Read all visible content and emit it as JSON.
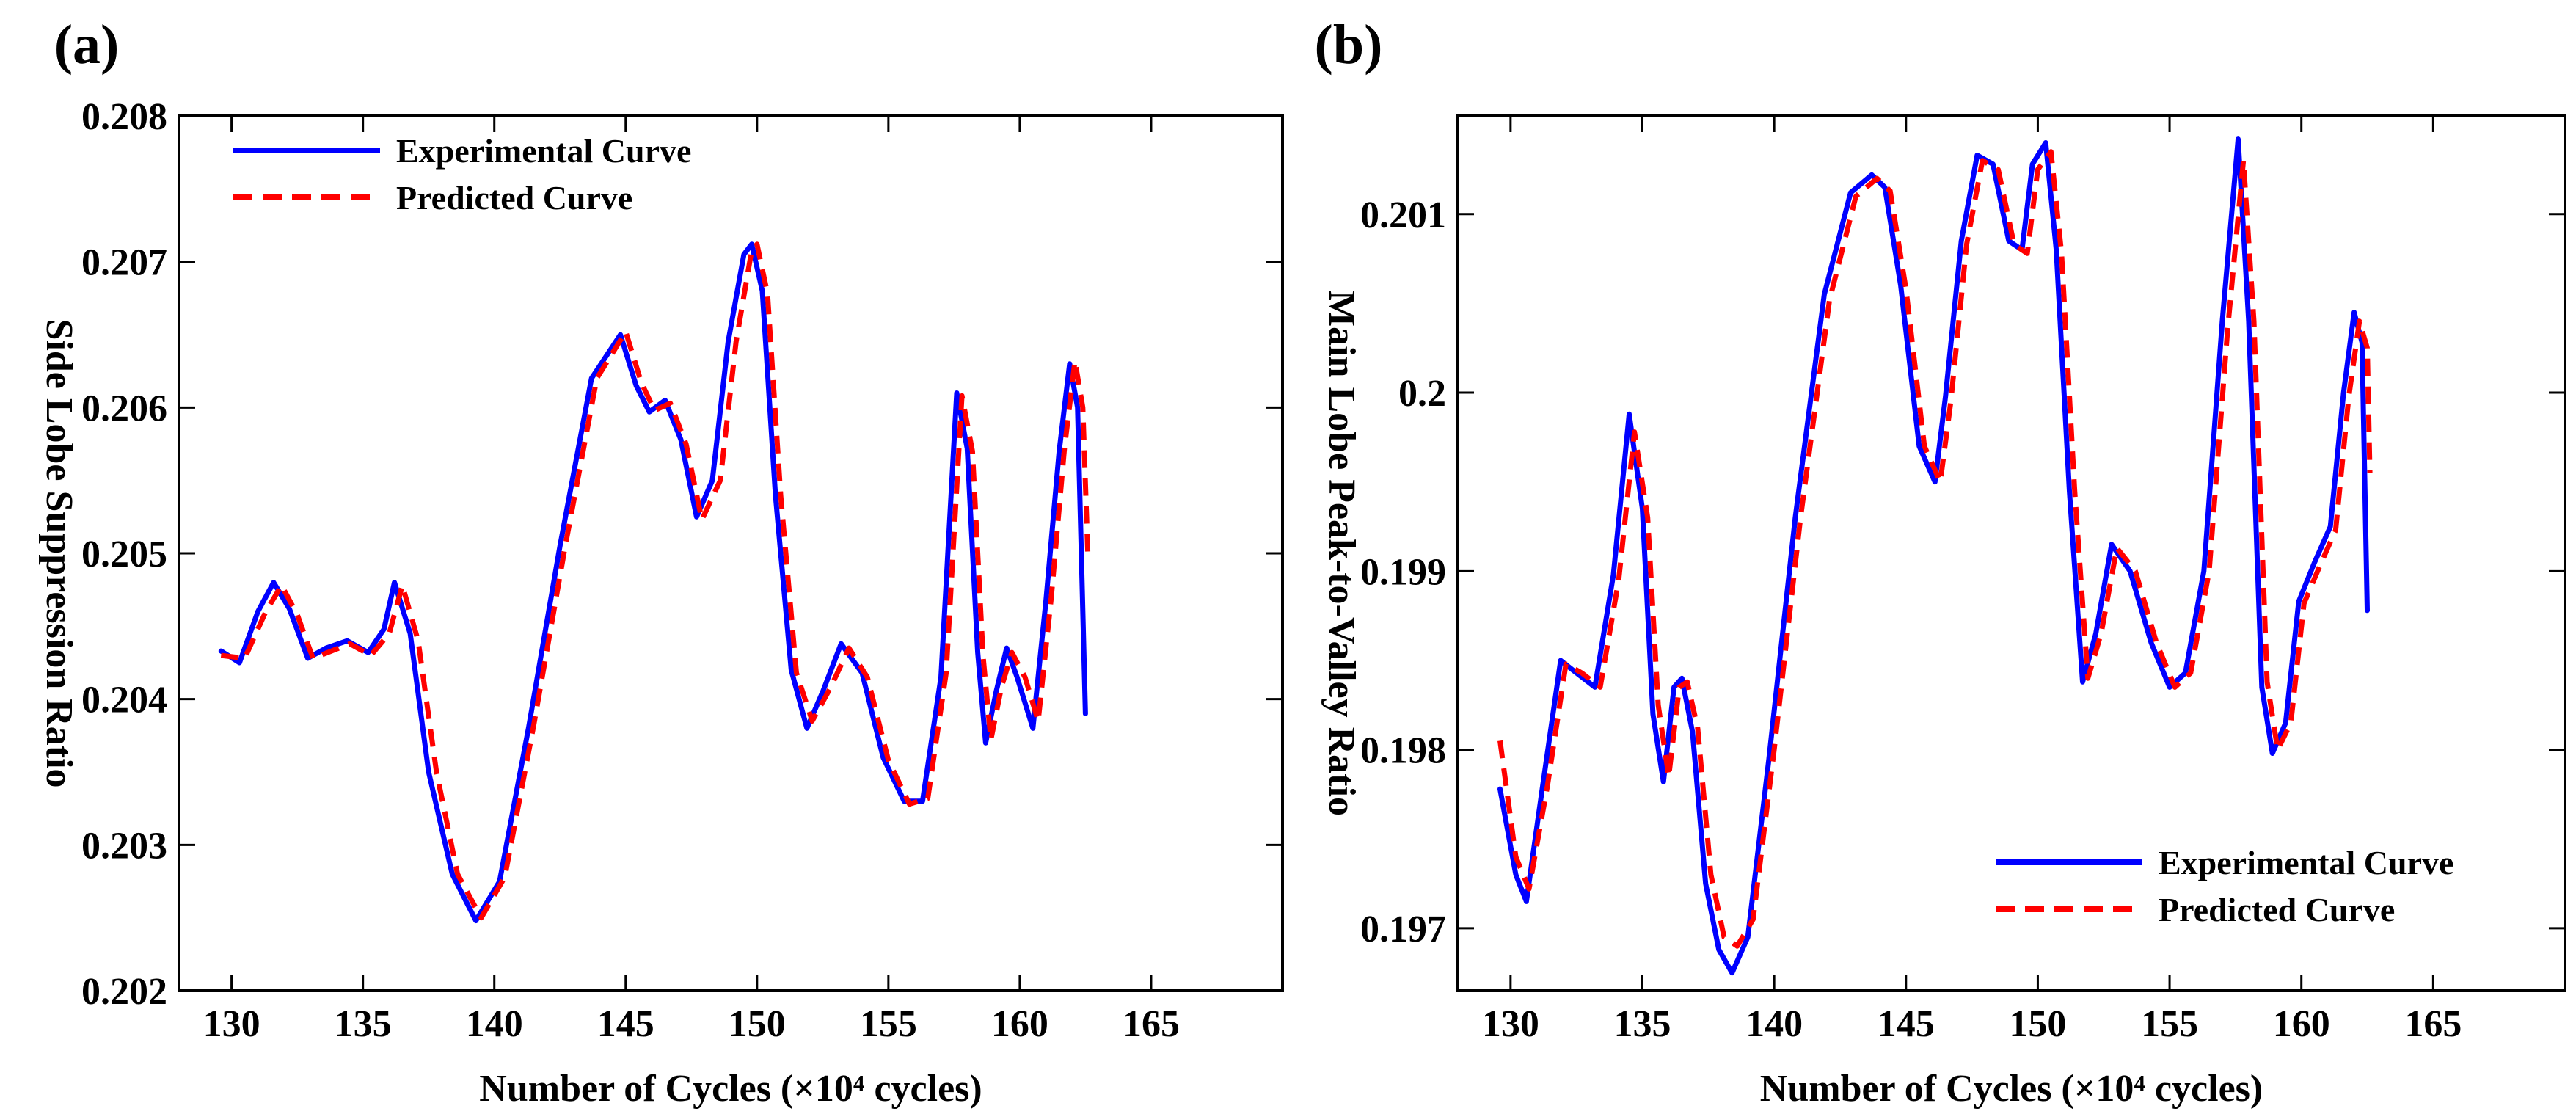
{
  "chart_data": [
    {
      "type": "line",
      "panel_label": "(a)",
      "xlabel": "Number of Cycles (×10⁴ cycles)",
      "ylabel": "Side Lobe Suppression Ratio",
      "xlim": [
        128,
        170
      ],
      "ylim": [
        0.202,
        0.208
      ],
      "xticks": [
        130,
        135,
        140,
        145,
        150,
        155,
        160,
        165
      ],
      "yticks": [
        0.202,
        0.203,
        0.204,
        0.205,
        0.206,
        0.207,
        0.208
      ],
      "ytick_labels": [
        "0.202",
        "0.203",
        "0.204",
        "0.205",
        "0.206",
        "0.207",
        "0.208"
      ],
      "legend_position": "top-left",
      "series": [
        {
          "name": "Experimental Curve",
          "color": "#0000ff",
          "style": "solid",
          "x": [
            129.6,
            130.3,
            131.0,
            131.6,
            132.2,
            132.9,
            133.6,
            134.4,
            135.2,
            135.8,
            136.2,
            136.8,
            137.5,
            138.4,
            139.3,
            140.2,
            141.3,
            142.5,
            143.7,
            144.8,
            145.4,
            145.9,
            146.5,
            147.1,
            147.7,
            148.3,
            148.9,
            149.5,
            149.8,
            150.2,
            150.7,
            151.3,
            151.9,
            152.5,
            153.2,
            154.0,
            154.8,
            155.6,
            156.3,
            157.0,
            157.6,
            158.0,
            158.4,
            158.7,
            159.1,
            159.5,
            159.9,
            160.5,
            161.0,
            161.5,
            161.9,
            162.2,
            162.5
          ],
          "y": [
            0.20433,
            0.20425,
            0.2046,
            0.2048,
            0.20462,
            0.20428,
            0.20435,
            0.2044,
            0.20432,
            0.20448,
            0.2048,
            0.20445,
            0.2035,
            0.2028,
            0.20248,
            0.20275,
            0.2038,
            0.20505,
            0.2062,
            0.2065,
            0.20615,
            0.20597,
            0.20605,
            0.20578,
            0.20525,
            0.2055,
            0.20645,
            0.20705,
            0.20712,
            0.2068,
            0.2054,
            0.2042,
            0.2038,
            0.20405,
            0.20438,
            0.20418,
            0.2036,
            0.2033,
            0.2033,
            0.20415,
            0.2061,
            0.20572,
            0.20432,
            0.2037,
            0.20405,
            0.20435,
            0.20415,
            0.2038,
            0.20468,
            0.2057,
            0.2063,
            0.206,
            0.2039
          ]
        },
        {
          "name": "Predicted Curve",
          "color": "#ff0000",
          "style": "dashed",
          "x": [
            129.6,
            130.5,
            131.3,
            131.9,
            132.5,
            133.1,
            133.8,
            134.5,
            135.3,
            136.0,
            136.5,
            137.1,
            137.8,
            138.6,
            139.5,
            140.4,
            141.5,
            142.7,
            143.9,
            145.0,
            145.6,
            146.1,
            146.7,
            147.3,
            147.9,
            148.6,
            149.2,
            149.8,
            150.0,
            150.4,
            150.9,
            151.5,
            152.1,
            152.8,
            153.5,
            154.2,
            155.0,
            155.8,
            156.5,
            157.2,
            157.8,
            158.2,
            158.6,
            158.9,
            159.3,
            159.7,
            160.2,
            160.7,
            161.2,
            161.7,
            162.1,
            162.4,
            162.6
          ],
          "y": [
            0.2043,
            0.20428,
            0.2046,
            0.20478,
            0.20458,
            0.20428,
            0.20433,
            0.20438,
            0.2043,
            0.20445,
            0.20478,
            0.2044,
            0.2035,
            0.2028,
            0.2025,
            0.20278,
            0.20382,
            0.20505,
            0.2062,
            0.20652,
            0.20617,
            0.20598,
            0.20603,
            0.20575,
            0.20523,
            0.2055,
            0.20645,
            0.20708,
            0.20712,
            0.20678,
            0.2054,
            0.20418,
            0.20385,
            0.20408,
            0.20435,
            0.20415,
            0.20358,
            0.20328,
            0.20332,
            0.20418,
            0.20608,
            0.2057,
            0.2043,
            0.20372,
            0.20408,
            0.20432,
            0.20415,
            0.20385,
            0.2047,
            0.20572,
            0.20632,
            0.206,
            0.20495
          ]
        }
      ]
    },
    {
      "type": "line",
      "panel_label": "(b)",
      "xlabel": "Number of Cycles (×10⁴ cycles)",
      "ylabel": "Main Lobe Peak-to-Valley Ratio",
      "xlim": [
        128,
        170
      ],
      "ylim": [
        0.19665,
        0.20155
      ],
      "xticks": [
        130,
        135,
        140,
        145,
        150,
        155,
        160,
        165
      ],
      "yticks": [
        0.197,
        0.198,
        0.199,
        0.2,
        0.201
      ],
      "ytick_labels": [
        "0.197",
        "0.198",
        "0.199",
        "0.2",
        "0.201"
      ],
      "legend_position": "bottom-right",
      "series": [
        {
          "name": "Experimental Curve",
          "color": "#0000ff",
          "style": "solid",
          "x": [
            129.6,
            130.2,
            130.6,
            131.2,
            131.9,
            132.5,
            133.2,
            133.9,
            134.5,
            135.0,
            135.4,
            135.8,
            136.2,
            136.5,
            136.9,
            137.4,
            137.9,
            138.4,
            139.0,
            139.8,
            140.8,
            141.9,
            142.9,
            143.7,
            144.2,
            144.8,
            145.5,
            146.1,
            146.5,
            147.1,
            147.7,
            148.3,
            148.9,
            149.4,
            149.8,
            150.3,
            150.7,
            151.2,
            151.7,
            152.2,
            152.8,
            153.5,
            154.3,
            155.0,
            155.6,
            156.3,
            157.0,
            157.6,
            158.0,
            158.5,
            158.9,
            159.4,
            159.9,
            160.5,
            161.1,
            161.6,
            162.0,
            162.3,
            162.5
          ],
          "y": [
            0.19778,
            0.1973,
            0.19715,
            0.19778,
            0.1985,
            0.19843,
            0.19835,
            0.19898,
            0.19988,
            0.19935,
            0.1982,
            0.19782,
            0.19835,
            0.1984,
            0.1981,
            0.19725,
            0.19688,
            0.19675,
            0.19695,
            0.19795,
            0.1993,
            0.20055,
            0.20112,
            0.20122,
            0.20115,
            0.2006,
            0.1997,
            0.1995,
            0.19998,
            0.20085,
            0.20133,
            0.20128,
            0.20085,
            0.2008,
            0.20128,
            0.2014,
            0.2008,
            0.19945,
            0.19838,
            0.19865,
            0.19915,
            0.199,
            0.1986,
            0.19835,
            0.19843,
            0.199,
            0.2004,
            0.20142,
            0.2004,
            0.19835,
            0.19798,
            0.19815,
            0.19883,
            0.19905,
            0.19925,
            0.2,
            0.20045,
            0.20028,
            0.19878
          ]
        },
        {
          "name": "Predicted Curve",
          "color": "#ff0000",
          "style": "dashed",
          "x": [
            129.6,
            130.2,
            130.7,
            131.4,
            132.1,
            132.7,
            133.4,
            134.1,
            134.7,
            135.2,
            135.6,
            136.0,
            136.4,
            136.7,
            137.1,
            137.6,
            138.1,
            138.6,
            139.2,
            140.0,
            141.0,
            142.1,
            143.1,
            143.9,
            144.4,
            145.0,
            145.7,
            146.3,
            146.7,
            147.3,
            147.9,
            148.5,
            149.1,
            149.6,
            150.0,
            150.5,
            150.9,
            151.4,
            151.9,
            152.4,
            153.0,
            153.7,
            154.5,
            155.2,
            155.8,
            156.5,
            157.2,
            157.8,
            158.2,
            158.7,
            159.1,
            159.6,
            160.1,
            160.7,
            161.3,
            161.8,
            162.2,
            162.5,
            162.6
          ],
          "y": [
            0.19805,
            0.1974,
            0.19722,
            0.1978,
            0.19848,
            0.19843,
            0.19835,
            0.19895,
            0.19978,
            0.1993,
            0.19825,
            0.19785,
            0.19835,
            0.19838,
            0.19812,
            0.1973,
            0.19695,
            0.1969,
            0.19705,
            0.198,
            0.1993,
            0.20052,
            0.2011,
            0.2012,
            0.20113,
            0.20058,
            0.1997,
            0.1995,
            0.19995,
            0.20083,
            0.2013,
            0.20125,
            0.20083,
            0.20078,
            0.20125,
            0.20135,
            0.20078,
            0.19945,
            0.1984,
            0.19865,
            0.19913,
            0.199,
            0.1986,
            0.19835,
            0.19843,
            0.199,
            0.20035,
            0.2013,
            0.2004,
            0.19838,
            0.198,
            0.19815,
            0.19882,
            0.19903,
            0.19923,
            0.19998,
            0.2004,
            0.20025,
            0.19955
          ]
        }
      ]
    }
  ]
}
